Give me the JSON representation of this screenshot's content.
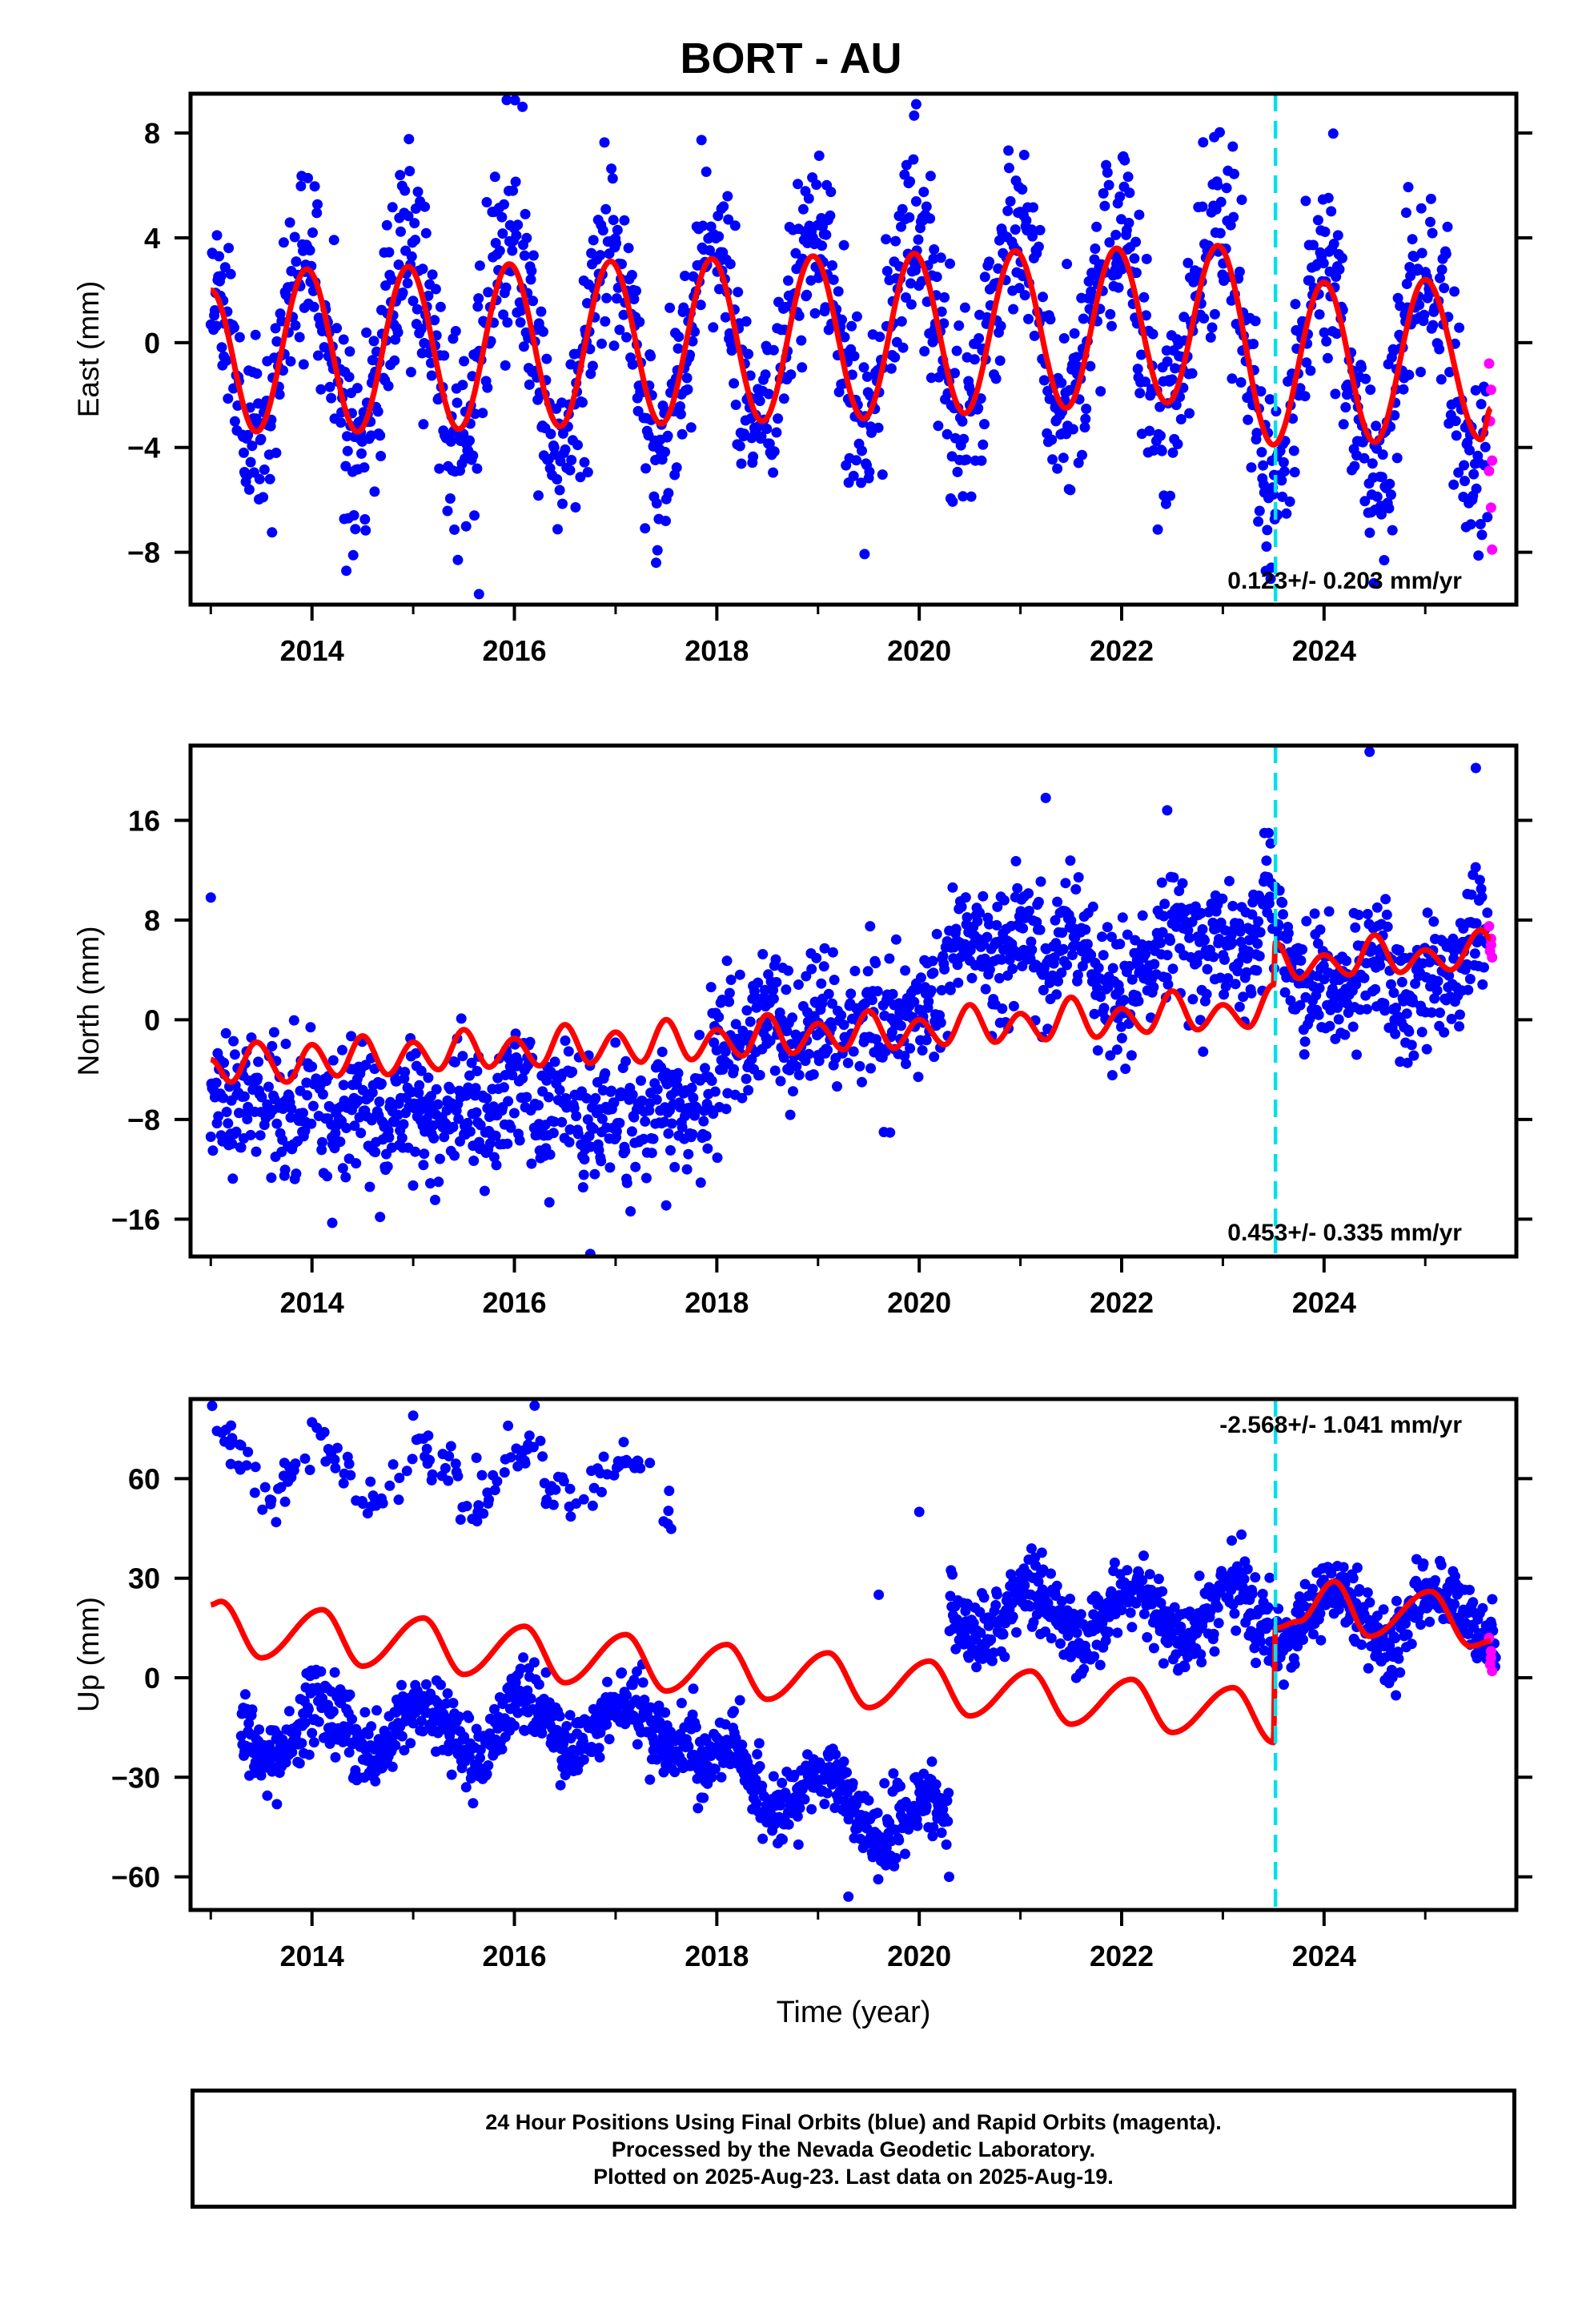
{
  "title": "BORT - AU",
  "colors": {
    "final_orbits": "#0000ff",
    "rapid_orbits": "#ff00ff",
    "model": "#ff0000",
    "event_line": "#00e0e8",
    "frame": "#000000"
  },
  "caption": [
    "24 Hour Positions Using Final Orbits (blue) and Rapid Orbits (magenta).",
    "Processed by the Nevada Geodetic Laboratory.",
    "Plotted on 2025-Aug-23. Last data on 2025-Aug-19."
  ],
  "chart_data": [
    {
      "type": "scatter",
      "component": "east",
      "ylabel": "East (mm)",
      "xlabel": "",
      "xlim": [
        2012.8,
        2025.9
      ],
      "ylim": [
        -10,
        9.5
      ],
      "x_ticks": [
        2014,
        2016,
        2018,
        2020,
        2022,
        2024
      ],
      "y_ticks": [
        -8,
        -4,
        0,
        4,
        8
      ],
      "rate_label": "0.123+/- 0.203 mm/yr",
      "rate_label_position": "bottom-right",
      "event_line_x": 2023.52,
      "model": {
        "name": "model",
        "color": "#ff0000",
        "offset_before": 0,
        "offset_after": 0,
        "trend_mm_per_yr": 0.0,
        "annual_amplitude": 3.0,
        "annual_phase_peak": 2013.95,
        "amplitude_growth": 0.06,
        "step_at_event": 0,
        "points": [
          [
            2013.0,
            2.0
          ],
          [
            2013.45,
            -3.4
          ],
          [
            2013.95,
            2.8
          ],
          [
            2014.45,
            -3.4
          ],
          [
            2014.95,
            2.9
          ],
          [
            2015.45,
            -3.3
          ],
          [
            2015.95,
            3.0
          ],
          [
            2016.45,
            -3.2
          ],
          [
            2016.95,
            3.1
          ],
          [
            2017.45,
            -3.1
          ],
          [
            2017.95,
            3.2
          ],
          [
            2018.45,
            -3.0
          ],
          [
            2018.95,
            3.3
          ],
          [
            2019.45,
            -2.9
          ],
          [
            2019.95,
            3.4
          ],
          [
            2020.45,
            -2.7
          ],
          [
            2020.95,
            3.5
          ],
          [
            2021.45,
            -2.5
          ],
          [
            2021.95,
            3.6
          ],
          [
            2022.45,
            -2.3
          ],
          [
            2022.95,
            3.7
          ],
          [
            2023.5,
            -3.9
          ],
          [
            2024.0,
            2.3
          ],
          [
            2024.5,
            -3.8
          ],
          [
            2025.0,
            2.4
          ],
          [
            2025.55,
            -3.7
          ],
          [
            2025.65,
            -2.5
          ]
        ]
      },
      "scatter_model": {
        "noise_mm": 1.9,
        "sd_seed": 11,
        "outliers": [
          [
            2016.08,
            9.0
          ],
          [
            2019.97,
            9.1
          ],
          [
            2015.65,
            -9.6
          ],
          [
            2017.4,
            -8.4
          ]
        ]
      },
      "rapid_points": [
        [
          2025.63,
          -0.8
        ],
        [
          2025.65,
          -1.8
        ],
        [
          2025.64,
          -3.0
        ],
        [
          2025.66,
          -4.5
        ],
        [
          2025.65,
          -6.3
        ],
        [
          2025.66,
          -7.9
        ],
        [
          2025.63,
          -4.9
        ]
      ]
    },
    {
      "type": "scatter",
      "component": "north",
      "ylabel": "North (mm)",
      "xlabel": "",
      "xlim": [
        2012.8,
        2025.9
      ],
      "ylim": [
        -19,
        22
      ],
      "x_ticks": [
        2014,
        2016,
        2018,
        2020,
        2022,
        2024
      ],
      "y_ticks": [
        -16,
        -8,
        0,
        8,
        16
      ],
      "rate_label": "0.453+/- 0.335 mm/yr",
      "rate_label_position": "bottom-right",
      "event_line_x": 2023.52,
      "model": {
        "name": "model",
        "color": "#ff0000",
        "points": [
          [
            2013.0,
            -3.2
          ],
          [
            2013.2,
            -5.0
          ],
          [
            2013.45,
            -1.8
          ],
          [
            2013.75,
            -5.0
          ],
          [
            2014.0,
            -2.0
          ],
          [
            2014.25,
            -4.5
          ],
          [
            2014.5,
            -1.3
          ],
          [
            2014.75,
            -4.4
          ],
          [
            2015.0,
            -1.8
          ],
          [
            2015.25,
            -4.0
          ],
          [
            2015.5,
            -0.8
          ],
          [
            2015.75,
            -3.8
          ],
          [
            2016.0,
            -1.5
          ],
          [
            2016.25,
            -3.7
          ],
          [
            2016.5,
            -0.4
          ],
          [
            2016.75,
            -3.5
          ],
          [
            2017.0,
            -1.0
          ],
          [
            2017.25,
            -3.4
          ],
          [
            2017.5,
            0.0
          ],
          [
            2017.75,
            -3.2
          ],
          [
            2018.0,
            -0.8
          ],
          [
            2018.25,
            -2.9
          ],
          [
            2018.5,
            0.4
          ],
          [
            2018.75,
            -2.7
          ],
          [
            2019.0,
            -0.3
          ],
          [
            2019.25,
            -2.4
          ],
          [
            2019.5,
            0.7
          ],
          [
            2019.75,
            -2.3
          ],
          [
            2020.0,
            0.0
          ],
          [
            2020.25,
            -2.0
          ],
          [
            2020.5,
            1.2
          ],
          [
            2020.75,
            -1.8
          ],
          [
            2021.0,
            0.5
          ],
          [
            2021.25,
            -1.6
          ],
          [
            2021.5,
            1.8
          ],
          [
            2021.75,
            -1.4
          ],
          [
            2022.0,
            0.9
          ],
          [
            2022.25,
            -1.0
          ],
          [
            2022.5,
            2.3
          ],
          [
            2022.75,
            -0.8
          ],
          [
            2023.0,
            1.2
          ],
          [
            2023.25,
            -0.6
          ],
          [
            2023.5,
            2.8
          ],
          [
            2023.52,
            6.2
          ],
          [
            2023.75,
            3.3
          ],
          [
            2024.0,
            5.2
          ],
          [
            2024.25,
            3.6
          ],
          [
            2024.5,
            6.8
          ],
          [
            2024.75,
            3.8
          ],
          [
            2025.0,
            5.6
          ],
          [
            2025.25,
            4.0
          ],
          [
            2025.55,
            7.2
          ],
          [
            2025.65,
            6.5
          ]
        ]
      },
      "scatter_model": {
        "noise_mm": 2.6,
        "sd_seed": 23,
        "data_centres": [
          [
            2013.0,
            -4.5
          ],
          [
            2014.0,
            -5.5
          ],
          [
            2015.0,
            -6.5
          ],
          [
            2016.0,
            -6.0
          ],
          [
            2017.0,
            -7.5
          ],
          [
            2017.95,
            -6.0
          ],
          [
            2018.1,
            -2.0
          ],
          [
            2019.0,
            -0.5
          ],
          [
            2020.0,
            -0.3
          ],
          [
            2020.4,
            4.0
          ],
          [
            2021.0,
            4.5
          ],
          [
            2021.6,
            4.0
          ],
          [
            2022.0,
            1.0
          ],
          [
            2022.5,
            5.0
          ],
          [
            2023.0,
            4.0
          ],
          [
            2023.5,
            6.0
          ],
          [
            2024.0,
            3.0
          ],
          [
            2024.5,
            4.0
          ],
          [
            2025.0,
            2.5
          ],
          [
            2025.6,
            6.0
          ]
        ],
        "outliers": [
          [
            2013.0,
            9.8
          ],
          [
            2021.25,
            17.8
          ],
          [
            2022.45,
            16.8
          ],
          [
            2024.45,
            21.5
          ],
          [
            2025.5,
            20.2
          ],
          [
            2014.2,
            -16.3
          ],
          [
            2016.75,
            -18.8
          ],
          [
            2017.5,
            -14.9
          ]
        ]
      },
      "rapid_points": [
        [
          2025.63,
          7.5
        ],
        [
          2025.65,
          6.5
        ],
        [
          2025.64,
          5.5
        ],
        [
          2025.66,
          5.0
        ],
        [
          2025.65,
          6.0
        ]
      ]
    },
    {
      "type": "scatter",
      "component": "up",
      "ylabel": "Up (mm)",
      "xlabel": "Time (year)",
      "xlim": [
        2012.8,
        2025.9
      ],
      "ylim": [
        -70,
        84
      ],
      "x_ticks": [
        2014,
        2016,
        2018,
        2020,
        2022,
        2024
      ],
      "y_ticks": [
        -60,
        -30,
        0,
        30,
        60
      ],
      "rate_label": "-2.568+/- 1.041 mm/yr",
      "rate_label_position": "top-right",
      "event_line_x": 2023.52,
      "model": {
        "name": "model",
        "color": "#ff0000",
        "points": [
          [
            2013.0,
            22.0
          ],
          [
            2013.1,
            23.0
          ],
          [
            2013.5,
            6.0
          ],
          [
            2014.1,
            20.5
          ],
          [
            2014.5,
            3.5
          ],
          [
            2015.1,
            18.0
          ],
          [
            2015.5,
            1.0
          ],
          [
            2016.1,
            15.5
          ],
          [
            2016.5,
            -1.5
          ],
          [
            2017.1,
            13.0
          ],
          [
            2017.5,
            -4.0
          ],
          [
            2018.1,
            10.0
          ],
          [
            2018.5,
            -6.5
          ],
          [
            2019.1,
            7.5
          ],
          [
            2019.5,
            -9.0
          ],
          [
            2020.1,
            5.0
          ],
          [
            2020.5,
            -11.5
          ],
          [
            2021.1,
            2.0
          ],
          [
            2021.5,
            -14.0
          ],
          [
            2022.1,
            -0.5
          ],
          [
            2022.5,
            -16.5
          ],
          [
            2023.1,
            -3.0
          ],
          [
            2023.5,
            -19.5
          ],
          [
            2023.52,
            15.0
          ],
          [
            2023.75,
            17.0
          ],
          [
            2024.1,
            29.0
          ],
          [
            2024.45,
            12.5
          ],
          [
            2025.05,
            26.0
          ],
          [
            2025.45,
            9.5
          ],
          [
            2025.65,
            11.0
          ]
        ]
      },
      "scatter_model": {
        "noise_mm": 7.0,
        "sd_seed": 37,
        "clusters": [
          {
            "x0": 2013.0,
            "x1": 2017.6,
            "y0": 64.0,
            "y1": 58.0,
            "spread": 6.0,
            "density": 0.22
          },
          {
            "x0": 2013.3,
            "x1": 2017.8,
            "y0": -16.0,
            "y1": -14.0,
            "spread": 7.0,
            "density": 1.0
          },
          {
            "x0": 2017.8,
            "x1": 2020.3,
            "y0": -26.0,
            "y1": -46.0,
            "spread": 7.0,
            "density": 1.0
          },
          {
            "x0": 2020.3,
            "x1": 2023.5,
            "y0": 20.0,
            "y1": 19.0,
            "spread": 7.5,
            "density": 1.0
          },
          {
            "x0": 2023.52,
            "x1": 2025.7,
            "y0": 18.0,
            "y1": 20.0,
            "spread": 7.0,
            "density": 1.0
          }
        ],
        "outliers": [
          [
            2016.2,
            82.0
          ],
          [
            2015.0,
            79.0
          ],
          [
            2014.0,
            77.0
          ],
          [
            2019.6,
            25.0
          ],
          [
            2020.0,
            50.0
          ],
          [
            2019.3,
            -66.0
          ],
          [
            2013.2,
            76.0
          ]
        ]
      },
      "rapid_points": [
        [
          2025.63,
          12.0
        ],
        [
          2025.65,
          8.0
        ],
        [
          2025.64,
          4.0
        ],
        [
          2025.66,
          2.0
        ],
        [
          2025.65,
          6.0
        ]
      ]
    }
  ]
}
